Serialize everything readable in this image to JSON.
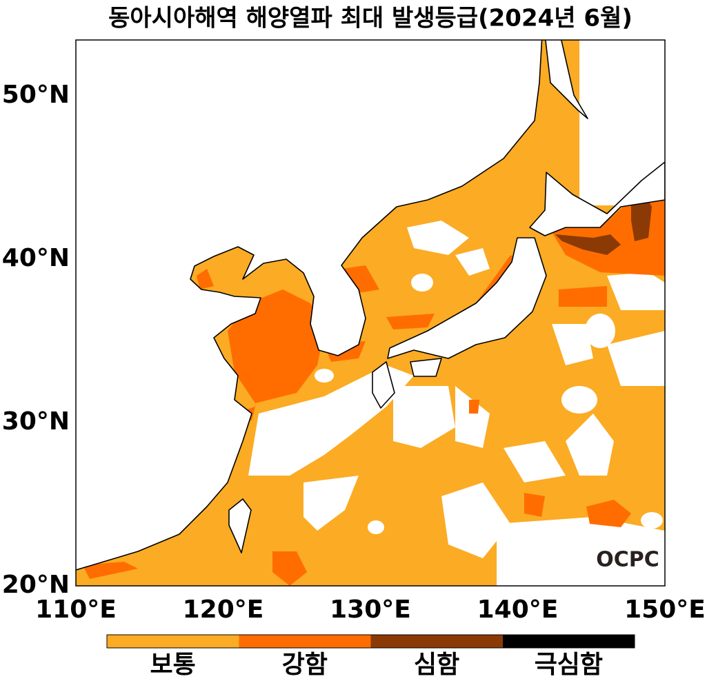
{
  "title": "동아시아해역 해양열파 최대 발생등급(2024년 6월)",
  "axes": {
    "x_labels": [
      "110°E",
      "120°E",
      "130°E",
      "140°E",
      "150°E"
    ],
    "y_labels": [
      "20°N",
      "30°N",
      "40°N",
      "50°N"
    ]
  },
  "legend": {
    "items": [
      {
        "label": "보통",
        "color": "#fbab24"
      },
      {
        "label": "강함",
        "color": "#ff6d00"
      },
      {
        "label": "심함",
        "color": "#8b3a06"
      },
      {
        "label": "극심함",
        "color": "#000000"
      }
    ]
  },
  "logo": "OCPC"
}
